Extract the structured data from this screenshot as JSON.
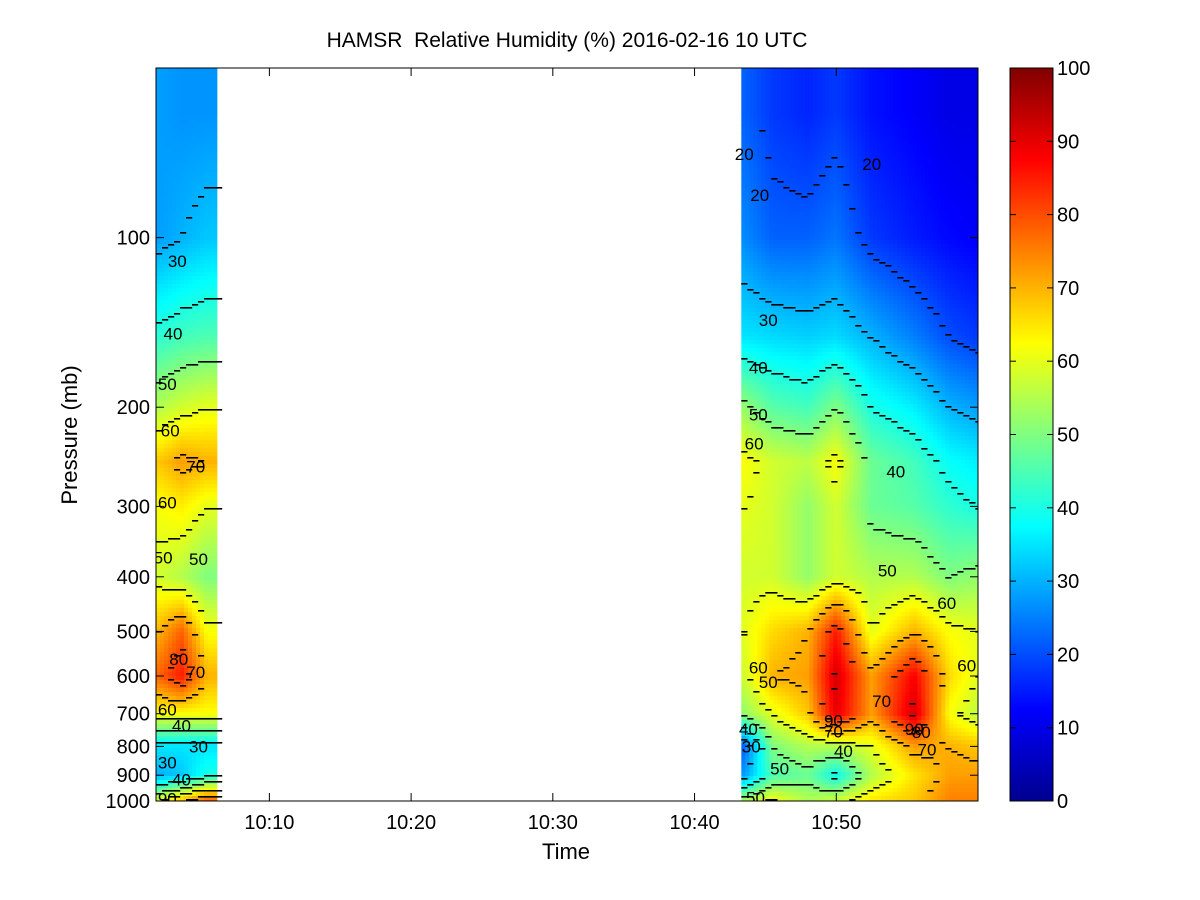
{
  "chart_data": {
    "type": "heatmap",
    "title": "HAMSR  Relative Humidity (%) 2016-02-16 10 UTC",
    "xlabel": "Time",
    "ylabel": "Pressure (mb)",
    "x_ticks": [
      "10:10",
      "10:20",
      "10:30",
      "10:40",
      "10:50"
    ],
    "x_tick_minutes": [
      10,
      20,
      30,
      40,
      50
    ],
    "xlim_minutes": [
      2,
      60
    ],
    "y_ticks": [
      100,
      200,
      300,
      400,
      500,
      600,
      700,
      800,
      900,
      1000
    ],
    "ylim": [
      50,
      1000
    ],
    "y_scale": "log",
    "y_reversed": true,
    "colorbar": {
      "min": 0,
      "max": 100,
      "ticks": [
        0,
        10,
        20,
        30,
        40,
        50,
        60,
        70,
        80,
        90,
        100
      ],
      "colormap": "jet"
    },
    "data_segments": [
      {
        "start_min": 2.0,
        "end_min": 6.3
      },
      {
        "start_min": 43.3,
        "end_min": 60.0
      }
    ],
    "contour_levels": [
      20,
      30,
      40,
      50,
      60,
      70,
      80,
      90
    ],
    "profiles": [
      {
        "t": 2.2,
        "p": [
          60,
          100,
          150,
          200,
          250,
          300,
          400,
          500,
          600,
          700,
          800,
          900,
          1000
        ],
        "rh": [
          28,
          28,
          42,
          55,
          68,
          62,
          58,
          70,
          78,
          62,
          35,
          30,
          60
        ]
      },
      {
        "t": 3.8,
        "p": [
          60,
          100,
          150,
          200,
          250,
          300,
          400,
          500,
          600,
          700,
          800,
          900,
          1000
        ],
        "rh": [
          27,
          30,
          44,
          58,
          72,
          64,
          55,
          78,
          85,
          62,
          35,
          32,
          70
        ]
      },
      {
        "t": 5.6,
        "p": [
          60,
          100,
          150,
          200,
          250,
          300,
          400,
          500,
          600,
          700,
          800,
          900,
          1000
        ],
        "rh": [
          27,
          32,
          45,
          60,
          70,
          60,
          50,
          62,
          70,
          62,
          35,
          40,
          80
        ]
      },
      {
        "t": 43.5,
        "p": [
          60,
          100,
          150,
          200,
          250,
          300,
          400,
          500,
          600,
          700,
          800,
          900,
          1000
        ],
        "rh": [
          22,
          26,
          35,
          52,
          62,
          60,
          58,
          60,
          58,
          52,
          22,
          28,
          55
        ]
      },
      {
        "t": 45.5,
        "p": [
          60,
          100,
          150,
          200,
          250,
          300,
          400,
          500,
          600,
          700,
          800,
          900,
          1000
        ],
        "rh": [
          18,
          22,
          34,
          46,
          58,
          58,
          58,
          66,
          70,
          60,
          50,
          45,
          62
        ]
      },
      {
        "t": 48.0,
        "p": [
          60,
          100,
          150,
          200,
          250,
          300,
          400,
          500,
          600,
          700,
          800,
          900,
          1000
        ],
        "rh": [
          16,
          22,
          33,
          44,
          56,
          52,
          52,
          70,
          72,
          68,
          55,
          48,
          55
        ]
      },
      {
        "t": 50.0,
        "p": [
          60,
          100,
          150,
          200,
          250,
          300,
          400,
          500,
          600,
          700,
          800,
          900,
          1000
        ],
        "rh": [
          18,
          24,
          34,
          50,
          62,
          58,
          58,
          85,
          92,
          90,
          55,
          38,
          58
        ]
      },
      {
        "t": 52.5,
        "p": [
          60,
          100,
          150,
          200,
          250,
          300,
          400,
          500,
          600,
          700,
          800,
          900,
          1000
        ],
        "rh": [
          14,
          18,
          30,
          40,
          48,
          48,
          55,
          60,
          72,
          72,
          60,
          55,
          65
        ]
      },
      {
        "t": 55.5,
        "p": [
          60,
          100,
          150,
          200,
          250,
          300,
          400,
          500,
          600,
          700,
          800,
          900,
          1000
        ],
        "rh": [
          12,
          15,
          25,
          36,
          44,
          46,
          55,
          70,
          88,
          92,
          72,
          65,
          68
        ]
      },
      {
        "t": 58.0,
        "p": [
          60,
          100,
          150,
          200,
          250,
          300,
          400,
          500,
          600,
          700,
          800,
          900,
          1000
        ],
        "rh": [
          10,
          13,
          20,
          30,
          38,
          42,
          50,
          62,
          66,
          62,
          70,
          72,
          75
        ]
      },
      {
        "t": 60.0,
        "p": [
          60,
          100,
          150,
          200,
          250,
          300,
          400,
          500,
          600,
          700,
          800,
          900,
          1000
        ],
        "rh": [
          10,
          12,
          18,
          28,
          36,
          40,
          52,
          60,
          60,
          56,
          68,
          72,
          75
        ]
      }
    ],
    "contour_labels": [
      {
        "text": "30",
        "t": 3.5,
        "p": 110
      },
      {
        "text": "40",
        "t": 3.2,
        "p": 148
      },
      {
        "text": "50",
        "t": 2.8,
        "p": 182
      },
      {
        "text": "60",
        "t": 3.0,
        "p": 220
      },
      {
        "text": "70",
        "t": 4.8,
        "p": 255
      },
      {
        "text": "60",
        "t": 2.8,
        "p": 295
      },
      {
        "text": "50",
        "t": 2.5,
        "p": 370
      },
      {
        "text": "50",
        "t": 5.0,
        "p": 372
      },
      {
        "text": "80",
        "t": 3.6,
        "p": 560
      },
      {
        "text": "70",
        "t": 4.8,
        "p": 590
      },
      {
        "text": "60",
        "t": 2.8,
        "p": 688
      },
      {
        "text": "40",
        "t": 3.8,
        "p": 735
      },
      {
        "text": "30",
        "t": 5.0,
        "p": 800
      },
      {
        "text": "30",
        "t": 2.8,
        "p": 855
      },
      {
        "text": "40",
        "t": 3.8,
        "p": 915
      },
      {
        "text": "90",
        "t": 2.8,
        "p": 990
      },
      {
        "text": "20",
        "t": 43.5,
        "p": 71
      },
      {
        "text": "20",
        "t": 44.6,
        "p": 84
      },
      {
        "text": "20",
        "t": 52.5,
        "p": 74
      },
      {
        "text": "30",
        "t": 45.2,
        "p": 140
      },
      {
        "text": "40",
        "t": 44.5,
        "p": 170
      },
      {
        "text": "50",
        "t": 44.5,
        "p": 206
      },
      {
        "text": "60",
        "t": 44.2,
        "p": 232
      },
      {
        "text": "40",
        "t": 54.2,
        "p": 260
      },
      {
        "text": "50",
        "t": 53.6,
        "p": 390
      },
      {
        "text": "60",
        "t": 57.8,
        "p": 445
      },
      {
        "text": "60",
        "t": 59.2,
        "p": 575
      },
      {
        "text": "60",
        "t": 44.5,
        "p": 580
      },
      {
        "text": "50",
        "t": 45.2,
        "p": 615
      },
      {
        "text": "70",
        "t": 53.2,
        "p": 665
      },
      {
        "text": "90",
        "t": 49.8,
        "p": 720
      },
      {
        "text": "70",
        "t": 49.8,
        "p": 752
      },
      {
        "text": "90",
        "t": 55.5,
        "p": 745
      },
      {
        "text": "80",
        "t": 56.0,
        "p": 755
      },
      {
        "text": "70",
        "t": 56.4,
        "p": 810
      },
      {
        "text": "40",
        "t": 43.8,
        "p": 745
      },
      {
        "text": "30",
        "t": 44.0,
        "p": 800
      },
      {
        "text": "40",
        "t": 50.5,
        "p": 815
      },
      {
        "text": "50",
        "t": 46.0,
        "p": 875
      },
      {
        "text": "50",
        "t": 44.3,
        "p": 985
      }
    ]
  }
}
